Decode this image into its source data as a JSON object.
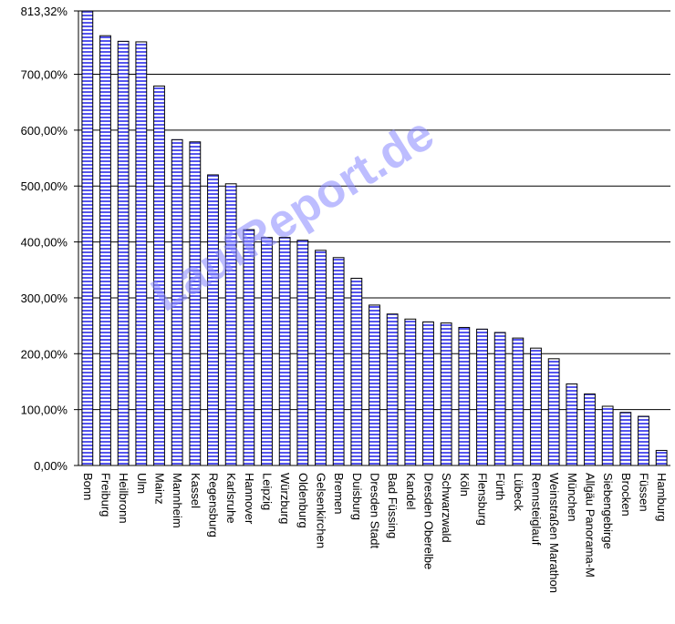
{
  "chart_data": {
    "type": "bar",
    "categories": [
      "Bonn",
      "Freiburg",
      "Heilbronn",
      "Ulm",
      "Mainz",
      "Mannheim",
      "Kassel",
      "Regensburg",
      "Karlsruhe",
      "Hannover",
      "Leipzig",
      "Würzburg",
      "Oldenburg",
      "Gelsenkirchen",
      "Bremen",
      "Duisburg",
      "Dresden Stadt",
      "Bad Füssing",
      "Kandel",
      "Dresden Oberelbe",
      "Schwarzwald",
      "Köln",
      "Flensburg",
      "Fürth",
      "Lübeck",
      "Rennsteiglauf",
      "Weinstraßen Marathon",
      "München",
      "Allgäu Panorama-M",
      "Siebengebirge",
      "Brocken",
      "Füssen",
      "Hamburg"
    ],
    "values": [
      813.32,
      769,
      759,
      758,
      679,
      583,
      579,
      520,
      504,
      422,
      408,
      408,
      403,
      385,
      372,
      335,
      287,
      271,
      262,
      257,
      255,
      247,
      244,
      238,
      228,
      210,
      191,
      146,
      128,
      106,
      95,
      88,
      27
    ],
    "color": "#5555ee",
    "ylim": [
      0,
      813.32
    ],
    "yticks": [
      {
        "value": 0,
        "label": "0,00%"
      },
      {
        "value": 100,
        "label": "100,00%"
      },
      {
        "value": 200,
        "label": "200,00%"
      },
      {
        "value": 300,
        "label": "300,00%"
      },
      {
        "value": 400,
        "label": "400,00%"
      },
      {
        "value": 500,
        "label": "500,00%"
      },
      {
        "value": 600,
        "label": "600,00%"
      },
      {
        "value": 700,
        "label": "700,00%"
      },
      {
        "value": 813.32,
        "label": "813,32%"
      }
    ],
    "grid": true,
    "watermark": "LaufReport.de"
  }
}
